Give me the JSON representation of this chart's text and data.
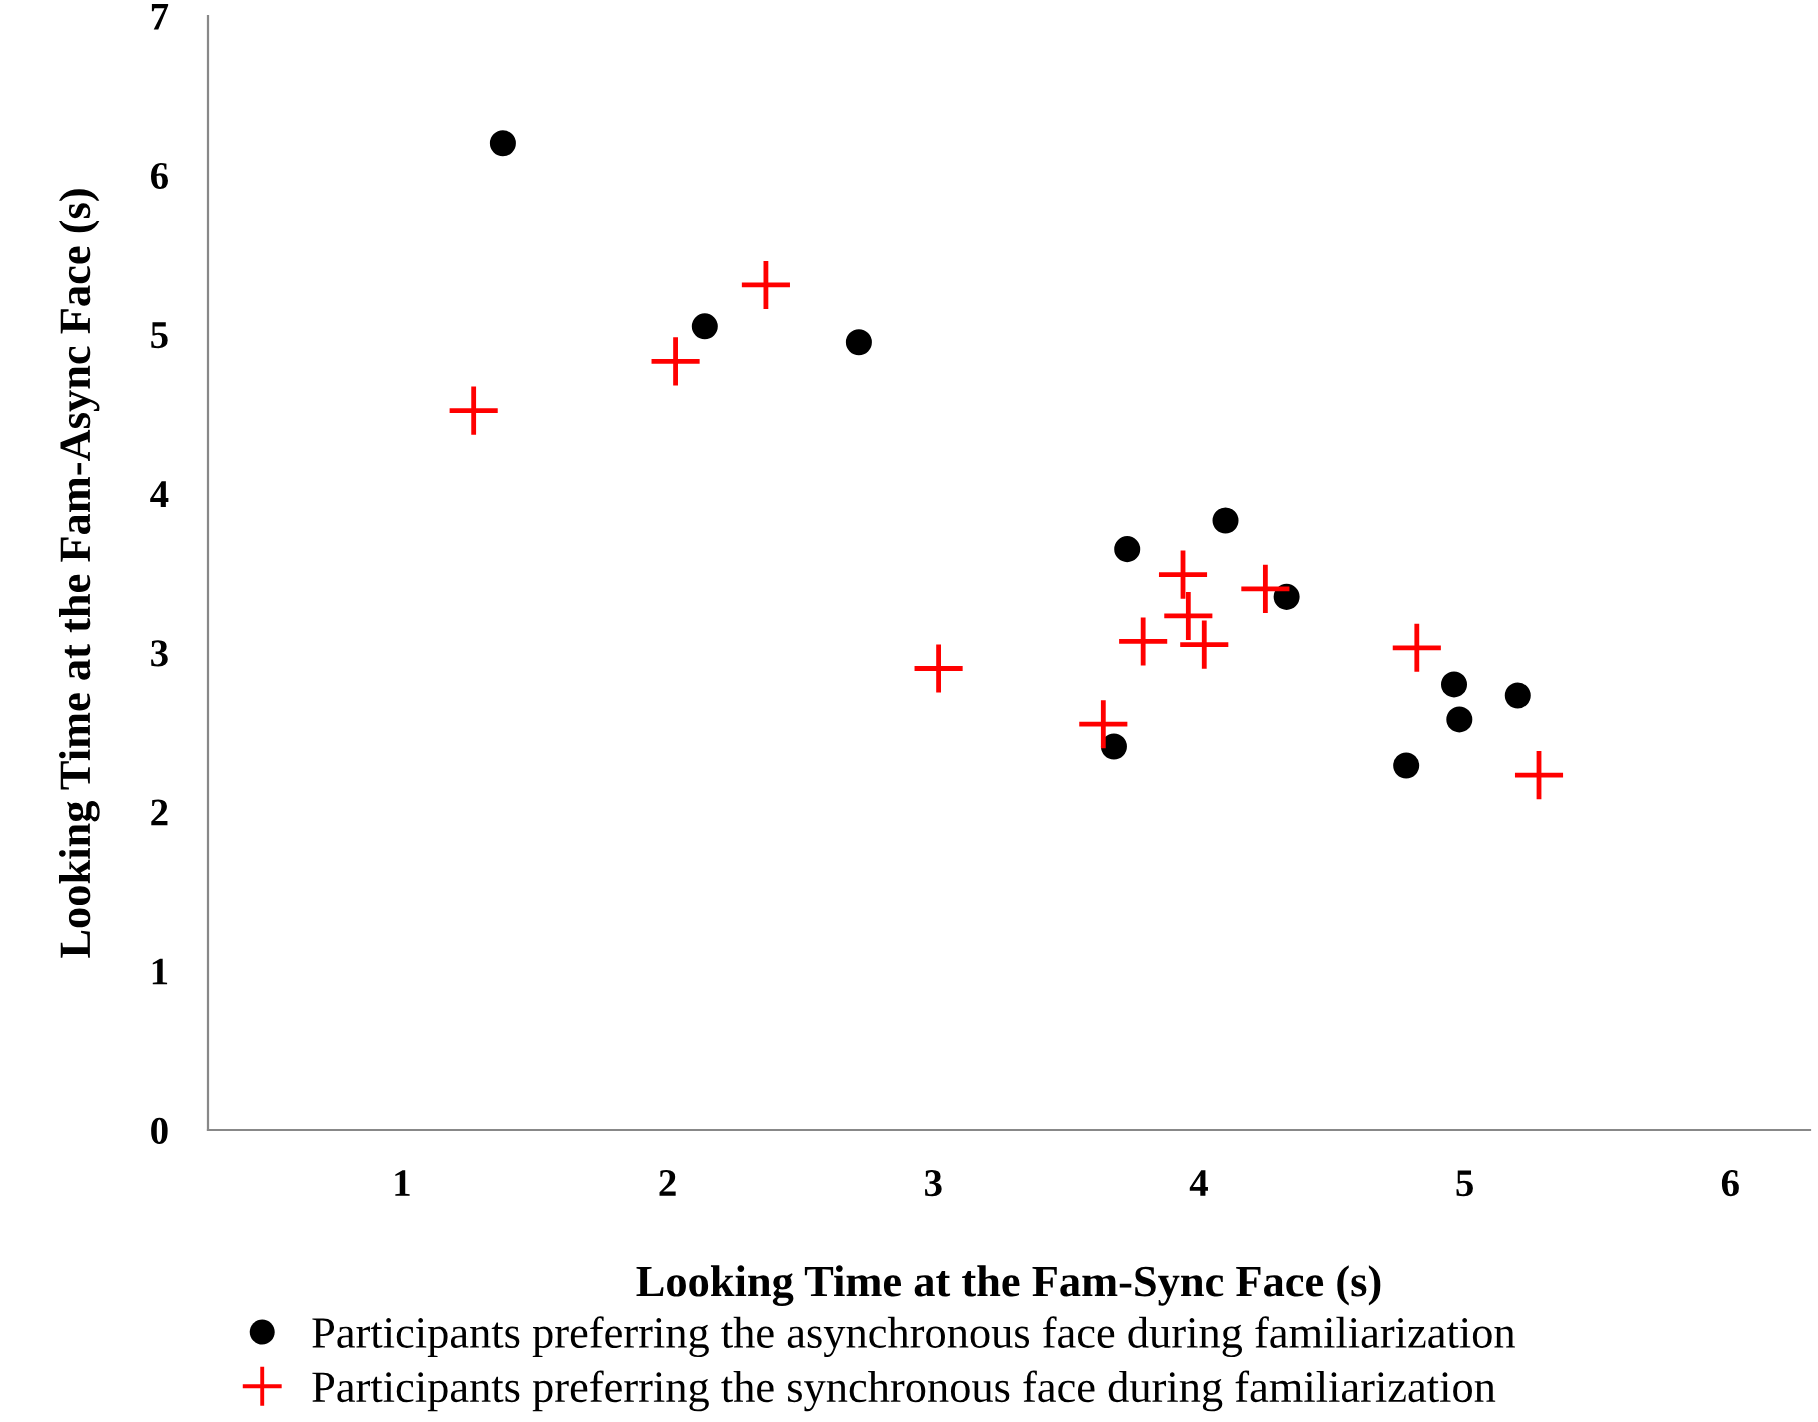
{
  "chart_data": {
    "type": "scatter",
    "xlabel": "Looking Time at the Fam-Sync Face (s)",
    "ylabel": "Looking Time at the Fam-Async Face (s)",
    "xlim": [
      0.27,
      6.3
    ],
    "ylim": [
      0,
      7
    ],
    "xticks": [
      1,
      2,
      3,
      4,
      5,
      6
    ],
    "yticks": [
      0,
      1,
      2,
      3,
      4,
      5,
      6,
      7
    ],
    "grid": false,
    "legend": "bottom",
    "series": [
      {
        "name": "Participants preferring the asynchronous face during familiarization",
        "color": "#000000",
        "marker": "circle",
        "x": [
          1.38,
          2.14,
          2.72,
          3.73,
          4.1,
          4.33,
          3.68,
          4.96,
          4.98,
          5.2,
          4.78
        ],
        "values": [
          6.2,
          5.05,
          4.95,
          3.65,
          3.83,
          3.35,
          2.41,
          2.8,
          2.58,
          2.73,
          2.29
        ]
      },
      {
        "name": "Participants preferring the synchronous face during familiarization",
        "color": "#ff0000",
        "marker": "cross",
        "x": [
          1.27,
          2.03,
          2.37,
          3.02,
          3.64,
          3.79,
          3.94,
          3.96,
          4.02,
          4.25,
          4.82,
          5.28
        ],
        "values": [
          4.52,
          4.83,
          5.31,
          2.9,
          2.55,
          3.07,
          3.49,
          3.23,
          3.05,
          3.4,
          3.03,
          2.23
        ]
      }
    ]
  }
}
